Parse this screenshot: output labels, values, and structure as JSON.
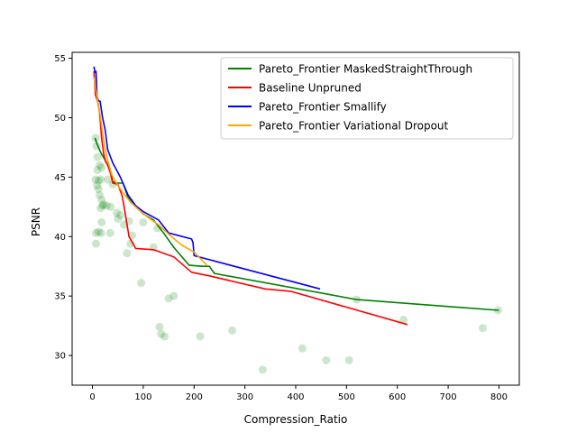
{
  "chart_data": {
    "type": "line",
    "title": "",
    "xlabel": "Compression_Ratio",
    "ylabel": "PSNR",
    "xlim": [
      -40,
      840
    ],
    "ylim": [
      27.5,
      55.5
    ],
    "xticks": [
      0,
      100,
      200,
      300,
      400,
      500,
      600,
      700,
      800
    ],
    "yticks": [
      30,
      35,
      40,
      45,
      50,
      55
    ],
    "grid": false,
    "legend_position": "top-right",
    "series": [
      {
        "name": "Pareto_Frontier MaskedStraightThrough",
        "color": "#008000",
        "x": [
          5,
          8,
          12,
          16,
          20,
          24,
          28,
          32,
          36,
          40,
          48,
          60,
          70,
          85,
          100,
          120,
          140,
          160,
          190,
          215,
          230,
          240,
          520,
          800
        ],
        "y": [
          48.3,
          47.9,
          47.5,
          47.1,
          46.8,
          46.5,
          46.2,
          45.9,
          45.4,
          44.6,
          44.5,
          44.5,
          43.3,
          42.6,
          41.9,
          41.4,
          40.3,
          39.1,
          37.6,
          37.5,
          37.5,
          36.9,
          34.7,
          33.8
        ]
      },
      {
        "name": "Baseline Unpruned",
        "color": "#ff0000",
        "x": [
          3,
          6,
          10,
          14,
          18,
          22,
          26,
          30,
          35,
          40,
          50,
          58,
          62,
          72,
          85,
          120,
          160,
          195,
          230,
          340,
          390,
          620
        ],
        "y": [
          53.9,
          51.9,
          51.4,
          50.5,
          48.3,
          47.0,
          46.3,
          46.0,
          45.4,
          44.5,
          44.4,
          43.5,
          42.6,
          40.0,
          39.0,
          38.9,
          38.3,
          37.0,
          36.7,
          35.6,
          35.4,
          32.6
        ]
      },
      {
        "name": "Pareto_Frontier Smallify",
        "color": "#0000ff",
        "x": [
          3,
          5,
          7,
          9,
          12,
          15,
          20,
          25,
          30,
          40,
          55,
          60,
          70,
          85,
          100,
          130,
          150,
          195,
          198,
          200,
          448
        ],
        "y": [
          54.3,
          53.8,
          53.9,
          51.8,
          51.4,
          51.4,
          50.0,
          49.0,
          47.3,
          46.2,
          45.0,
          44.5,
          43.5,
          42.6,
          42.1,
          41.4,
          40.3,
          39.8,
          39.5,
          38.4,
          35.6
        ]
      },
      {
        "name": "Pareto_Frontier Variational Dropout",
        "color": "#ffa500",
        "x": [
          3,
          6,
          10,
          15,
          20,
          25,
          30,
          38,
          50,
          62,
          75,
          90,
          110,
          130,
          150,
          175,
          200,
          225
        ],
        "y": [
          53.4,
          52.6,
          51.5,
          50.3,
          48.7,
          47.4,
          46.4,
          45.2,
          44.3,
          43.6,
          42.9,
          42.3,
          41.6,
          41.0,
          40.2,
          39.3,
          38.7,
          37.6
        ]
      }
    ],
    "scatter": {
      "color": "#008000",
      "alpha": 0.2,
      "points": [
        [
          6,
          48.3
        ],
        [
          8,
          47.6
        ],
        [
          10,
          46.7
        ],
        [
          14,
          46.0
        ],
        [
          18,
          45.8
        ],
        [
          10,
          45.6
        ],
        [
          6,
          44.8
        ],
        [
          12,
          44.7
        ],
        [
          16,
          44.8
        ],
        [
          9,
          44.3
        ],
        [
          12,
          44.0
        ],
        [
          14,
          43.5
        ],
        [
          18,
          43.1
        ],
        [
          20,
          42.6
        ],
        [
          16,
          42.4
        ],
        [
          22,
          42.7
        ],
        [
          28,
          42.6
        ],
        [
          36,
          42.5
        ],
        [
          12,
          40.4
        ],
        [
          17,
          40.3
        ],
        [
          7,
          40.3
        ],
        [
          7,
          39.4
        ],
        [
          18,
          41.2
        ],
        [
          30,
          44.8
        ],
        [
          40,
          44.4
        ],
        [
          48,
          42.0
        ],
        [
          50,
          41.5
        ],
        [
          55,
          41.8
        ],
        [
          62,
          41.0
        ],
        [
          72,
          41.3
        ],
        [
          78,
          40.1
        ],
        [
          35,
          40.3
        ],
        [
          68,
          38.6
        ],
        [
          75,
          39.4
        ],
        [
          100,
          41.2
        ],
        [
          120,
          39.1
        ],
        [
          128,
          40.7
        ],
        [
          96,
          36.1
        ],
        [
          150,
          34.8
        ],
        [
          160,
          35.0
        ],
        [
          132,
          32.4
        ],
        [
          135,
          31.8
        ],
        [
          142,
          31.6
        ],
        [
          212,
          31.6
        ],
        [
          275,
          32.1
        ],
        [
          335,
          28.8
        ],
        [
          413,
          30.6
        ],
        [
          460,
          29.6
        ],
        [
          505,
          29.6
        ],
        [
          520,
          34.7
        ],
        [
          612,
          33.0
        ],
        [
          768,
          32.3
        ],
        [
          798,
          33.8
        ]
      ]
    }
  }
}
